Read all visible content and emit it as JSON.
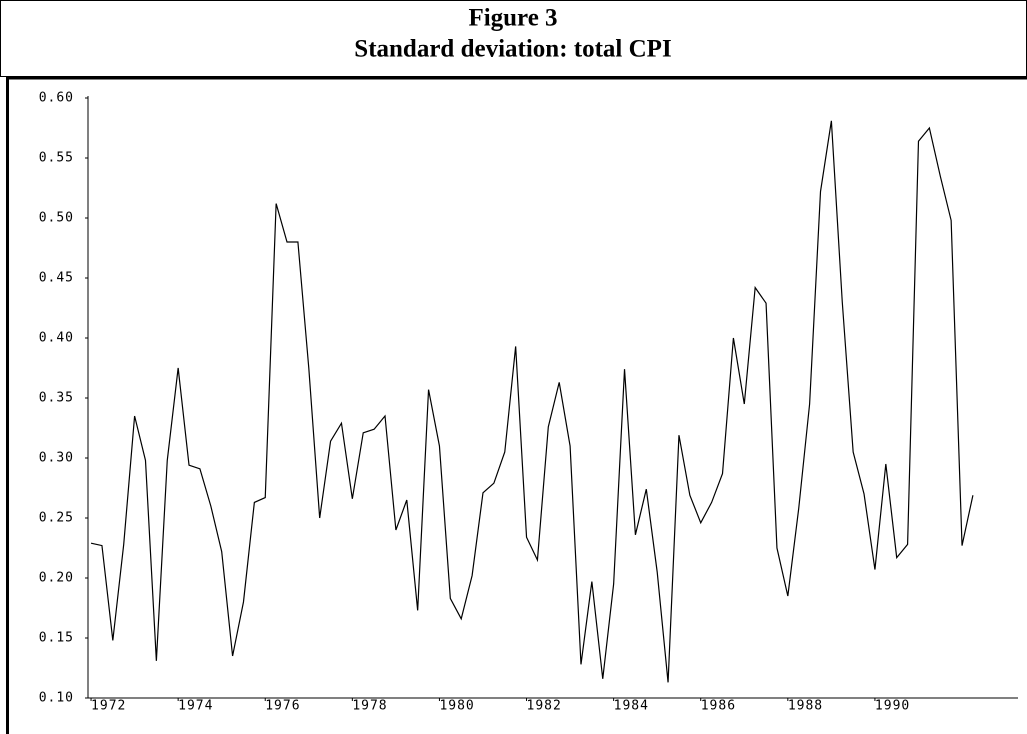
{
  "chart_data": {
    "type": "line",
    "title": "Figure 3",
    "subtitle": "Standard deviation: total CPI",
    "x": [
      1972,
      1972.25,
      1972.5,
      1972.75,
      1973,
      1973.25,
      1973.5,
      1973.75,
      1974,
      1974.25,
      1974.5,
      1974.75,
      1975,
      1975.25,
      1975.5,
      1975.75,
      1976,
      1976.25,
      1976.5,
      1976.75,
      1977,
      1977.25,
      1977.5,
      1977.75,
      1978,
      1978.25,
      1978.5,
      1978.75,
      1979,
      1979.25,
      1979.5,
      1979.75,
      1980,
      1980.25,
      1980.5,
      1980.75,
      1981,
      1981.25,
      1981.5,
      1981.75,
      1982,
      1982.25,
      1982.5,
      1982.75,
      1983,
      1983.25,
      1983.5,
      1983.75,
      1984,
      1984.25,
      1984.5,
      1984.75,
      1985,
      1985.25,
      1985.5,
      1985.75,
      1986,
      1986.25,
      1986.5,
      1986.75,
      1987,
      1987.25,
      1987.5,
      1987.75,
      1988,
      1988.25,
      1988.5,
      1988.75,
      1989,
      1989.25,
      1989.5,
      1989.75,
      1990,
      1990.25,
      1990.5,
      1990.75,
      1991,
      1991.25,
      1991.5,
      1991.75,
      1992,
      1992.25
    ],
    "series": [
      {
        "name": "total CPI",
        "color": "#000000",
        "values": [
          0.229,
          0.227,
          0.148,
          0.228,
          0.335,
          0.298,
          0.131,
          0.298,
          0.375,
          0.294,
          0.291,
          0.26,
          0.222,
          0.135,
          0.18,
          0.263,
          0.267,
          0.512,
          0.48,
          0.48,
          0.375,
          0.25,
          0.314,
          0.329,
          0.266,
          0.321,
          0.324,
          0.335,
          0.24,
          0.265,
          0.173,
          0.357,
          0.31,
          0.183,
          0.166,
          0.202,
          0.271,
          0.279,
          0.305,
          0.393,
          0.234,
          0.215,
          0.326,
          0.363,
          0.31,
          0.128,
          0.197,
          0.116,
          0.195,
          0.374,
          0.236,
          0.274,
          0.205,
          0.113,
          0.319,
          0.269,
          0.246,
          0.263,
          0.287,
          0.4,
          0.345,
          0.442,
          0.429,
          0.225,
          0.185,
          0.258,
          0.345,
          0.522,
          0.581,
          0.43,
          0.305,
          0.27,
          0.207,
          0.295,
          0.217,
          0.228,
          0.564,
          0.575,
          0.535,
          0.498,
          0.227,
          0.269
        ]
      }
    ],
    "xlim": [
      1971.93,
      1993.4
    ],
    "xticks": [
      1972,
      1974,
      1976,
      1978,
      1980,
      1982,
      1984,
      1986,
      1988,
      1990
    ],
    "ylim": [
      0.1,
      0.6
    ],
    "yticks": [
      {
        "value": 0.1,
        "label": "0.10"
      },
      {
        "value": 0.15,
        "label": "0.15"
      },
      {
        "value": 0.2,
        "label": "0.20"
      },
      {
        "value": 0.25,
        "label": "0.25"
      },
      {
        "value": 0.3,
        "label": "0.30"
      },
      {
        "value": 0.35,
        "label": "0.35"
      },
      {
        "value": 0.4,
        "label": "0.40"
      },
      {
        "value": 0.45,
        "label": "0.45"
      },
      {
        "value": 0.5,
        "label": "0.50"
      },
      {
        "value": 0.55,
        "label": "0.55"
      },
      {
        "value": 0.6,
        "label": "0.60"
      }
    ],
    "grid": false
  }
}
